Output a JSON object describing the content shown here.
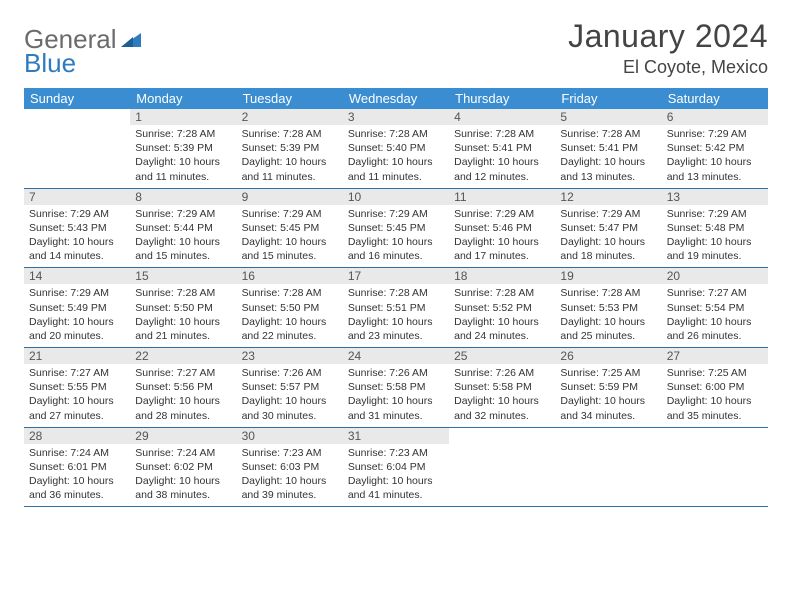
{
  "logo": {
    "word1": "General",
    "word2": "Blue"
  },
  "title": "January 2024",
  "location": "El Coyote, Mexico",
  "colors": {
    "header_bg": "#3a8dd0",
    "header_text": "#ffffff",
    "row_border": "#2f6fa5",
    "daynum_bg": "#e9e9e9",
    "logo_gray": "#6b6b6b",
    "logo_blue": "#2f7bbf"
  },
  "weekdays": [
    "Sunday",
    "Monday",
    "Tuesday",
    "Wednesday",
    "Thursday",
    "Friday",
    "Saturday"
  ],
  "weeks": [
    [
      null,
      {
        "n": "1",
        "sr": "Sunrise: 7:28 AM",
        "ss": "Sunset: 5:39 PM",
        "d1": "Daylight: 10 hours",
        "d2": "and 11 minutes."
      },
      {
        "n": "2",
        "sr": "Sunrise: 7:28 AM",
        "ss": "Sunset: 5:39 PM",
        "d1": "Daylight: 10 hours",
        "d2": "and 11 minutes."
      },
      {
        "n": "3",
        "sr": "Sunrise: 7:28 AM",
        "ss": "Sunset: 5:40 PM",
        "d1": "Daylight: 10 hours",
        "d2": "and 11 minutes."
      },
      {
        "n": "4",
        "sr": "Sunrise: 7:28 AM",
        "ss": "Sunset: 5:41 PM",
        "d1": "Daylight: 10 hours",
        "d2": "and 12 minutes."
      },
      {
        "n": "5",
        "sr": "Sunrise: 7:28 AM",
        "ss": "Sunset: 5:41 PM",
        "d1": "Daylight: 10 hours",
        "d2": "and 13 minutes."
      },
      {
        "n": "6",
        "sr": "Sunrise: 7:29 AM",
        "ss": "Sunset: 5:42 PM",
        "d1": "Daylight: 10 hours",
        "d2": "and 13 minutes."
      }
    ],
    [
      {
        "n": "7",
        "sr": "Sunrise: 7:29 AM",
        "ss": "Sunset: 5:43 PM",
        "d1": "Daylight: 10 hours",
        "d2": "and 14 minutes."
      },
      {
        "n": "8",
        "sr": "Sunrise: 7:29 AM",
        "ss": "Sunset: 5:44 PM",
        "d1": "Daylight: 10 hours",
        "d2": "and 15 minutes."
      },
      {
        "n": "9",
        "sr": "Sunrise: 7:29 AM",
        "ss": "Sunset: 5:45 PM",
        "d1": "Daylight: 10 hours",
        "d2": "and 15 minutes."
      },
      {
        "n": "10",
        "sr": "Sunrise: 7:29 AM",
        "ss": "Sunset: 5:45 PM",
        "d1": "Daylight: 10 hours",
        "d2": "and 16 minutes."
      },
      {
        "n": "11",
        "sr": "Sunrise: 7:29 AM",
        "ss": "Sunset: 5:46 PM",
        "d1": "Daylight: 10 hours",
        "d2": "and 17 minutes."
      },
      {
        "n": "12",
        "sr": "Sunrise: 7:29 AM",
        "ss": "Sunset: 5:47 PM",
        "d1": "Daylight: 10 hours",
        "d2": "and 18 minutes."
      },
      {
        "n": "13",
        "sr": "Sunrise: 7:29 AM",
        "ss": "Sunset: 5:48 PM",
        "d1": "Daylight: 10 hours",
        "d2": "and 19 minutes."
      }
    ],
    [
      {
        "n": "14",
        "sr": "Sunrise: 7:29 AM",
        "ss": "Sunset: 5:49 PM",
        "d1": "Daylight: 10 hours",
        "d2": "and 20 minutes."
      },
      {
        "n": "15",
        "sr": "Sunrise: 7:28 AM",
        "ss": "Sunset: 5:50 PM",
        "d1": "Daylight: 10 hours",
        "d2": "and 21 minutes."
      },
      {
        "n": "16",
        "sr": "Sunrise: 7:28 AM",
        "ss": "Sunset: 5:50 PM",
        "d1": "Daylight: 10 hours",
        "d2": "and 22 minutes."
      },
      {
        "n": "17",
        "sr": "Sunrise: 7:28 AM",
        "ss": "Sunset: 5:51 PM",
        "d1": "Daylight: 10 hours",
        "d2": "and 23 minutes."
      },
      {
        "n": "18",
        "sr": "Sunrise: 7:28 AM",
        "ss": "Sunset: 5:52 PM",
        "d1": "Daylight: 10 hours",
        "d2": "and 24 minutes."
      },
      {
        "n": "19",
        "sr": "Sunrise: 7:28 AM",
        "ss": "Sunset: 5:53 PM",
        "d1": "Daylight: 10 hours",
        "d2": "and 25 minutes."
      },
      {
        "n": "20",
        "sr": "Sunrise: 7:27 AM",
        "ss": "Sunset: 5:54 PM",
        "d1": "Daylight: 10 hours",
        "d2": "and 26 minutes."
      }
    ],
    [
      {
        "n": "21",
        "sr": "Sunrise: 7:27 AM",
        "ss": "Sunset: 5:55 PM",
        "d1": "Daylight: 10 hours",
        "d2": "and 27 minutes."
      },
      {
        "n": "22",
        "sr": "Sunrise: 7:27 AM",
        "ss": "Sunset: 5:56 PM",
        "d1": "Daylight: 10 hours",
        "d2": "and 28 minutes."
      },
      {
        "n": "23",
        "sr": "Sunrise: 7:26 AM",
        "ss": "Sunset: 5:57 PM",
        "d1": "Daylight: 10 hours",
        "d2": "and 30 minutes."
      },
      {
        "n": "24",
        "sr": "Sunrise: 7:26 AM",
        "ss": "Sunset: 5:58 PM",
        "d1": "Daylight: 10 hours",
        "d2": "and 31 minutes."
      },
      {
        "n": "25",
        "sr": "Sunrise: 7:26 AM",
        "ss": "Sunset: 5:58 PM",
        "d1": "Daylight: 10 hours",
        "d2": "and 32 minutes."
      },
      {
        "n": "26",
        "sr": "Sunrise: 7:25 AM",
        "ss": "Sunset: 5:59 PM",
        "d1": "Daylight: 10 hours",
        "d2": "and 34 minutes."
      },
      {
        "n": "27",
        "sr": "Sunrise: 7:25 AM",
        "ss": "Sunset: 6:00 PM",
        "d1": "Daylight: 10 hours",
        "d2": "and 35 minutes."
      }
    ],
    [
      {
        "n": "28",
        "sr": "Sunrise: 7:24 AM",
        "ss": "Sunset: 6:01 PM",
        "d1": "Daylight: 10 hours",
        "d2": "and 36 minutes."
      },
      {
        "n": "29",
        "sr": "Sunrise: 7:24 AM",
        "ss": "Sunset: 6:02 PM",
        "d1": "Daylight: 10 hours",
        "d2": "and 38 minutes."
      },
      {
        "n": "30",
        "sr": "Sunrise: 7:23 AM",
        "ss": "Sunset: 6:03 PM",
        "d1": "Daylight: 10 hours",
        "d2": "and 39 minutes."
      },
      {
        "n": "31",
        "sr": "Sunrise: 7:23 AM",
        "ss": "Sunset: 6:04 PM",
        "d1": "Daylight: 10 hours",
        "d2": "and 41 minutes."
      },
      null,
      null,
      null
    ]
  ]
}
